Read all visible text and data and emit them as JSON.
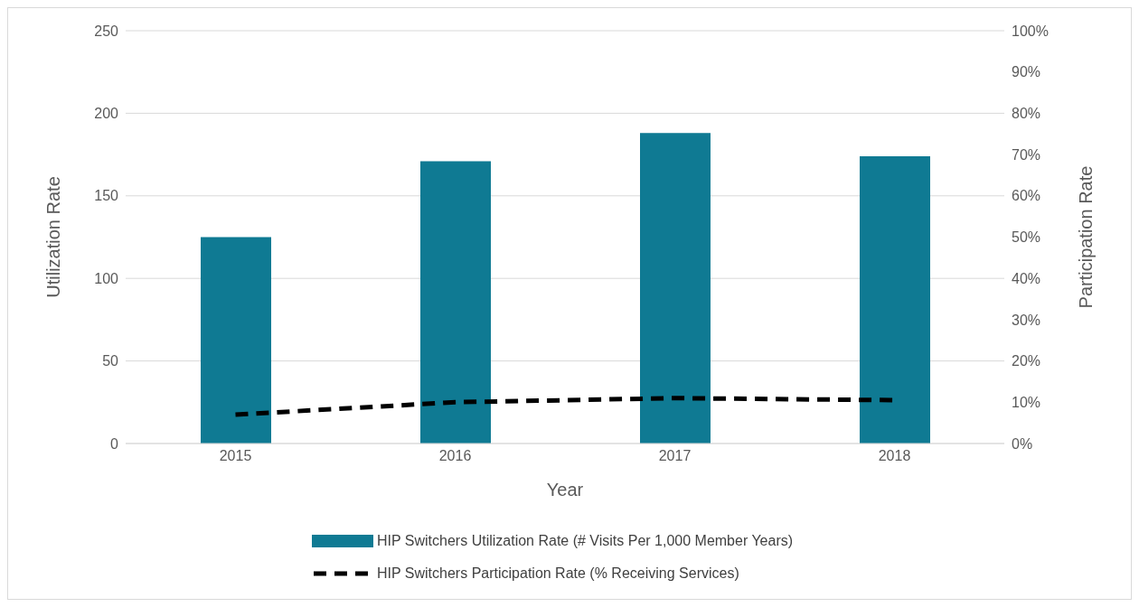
{
  "chart_data": {
    "type": "bar",
    "xlabel": "Year",
    "ylabel": "Utilization Rate",
    "y2label": "Participation Rate",
    "categories": [
      "2015",
      "2016",
      "2017",
      "2018"
    ],
    "series": [
      {
        "name": "HIP Switchers Utilization Rate (# Visits Per 1,000 Member Years)",
        "color": "#0f7a93",
        "values": [
          125,
          171,
          188,
          174
        ]
      },
      {
        "name": "HIP Switchers Participation Rate (% Receiving Services)",
        "type": "line",
        "axis": "y2",
        "color": "#000000",
        "line_style": "dashed",
        "values": [
          7,
          10,
          11,
          10.5
        ]
      }
    ],
    "ylim": [
      0,
      250
    ],
    "yticks": [
      0,
      50,
      100,
      150,
      200,
      250
    ],
    "y2lim": [
      0,
      100
    ],
    "y2ticks": [
      {
        "value": 0,
        "label": "0%"
      },
      {
        "value": 10,
        "label": "10%"
      },
      {
        "value": 20,
        "label": "20%"
      },
      {
        "value": 30,
        "label": "30%"
      },
      {
        "value": 40,
        "label": "40%"
      },
      {
        "value": 50,
        "label": "50%"
      },
      {
        "value": 60,
        "label": "60%"
      },
      {
        "value": 70,
        "label": "70%"
      },
      {
        "value": 80,
        "label": "80%"
      },
      {
        "value": 90,
        "label": "90%"
      },
      {
        "value": 100,
        "label": "100%"
      }
    ],
    "grid": "y",
    "legend": "bottom",
    "marker": "none"
  }
}
